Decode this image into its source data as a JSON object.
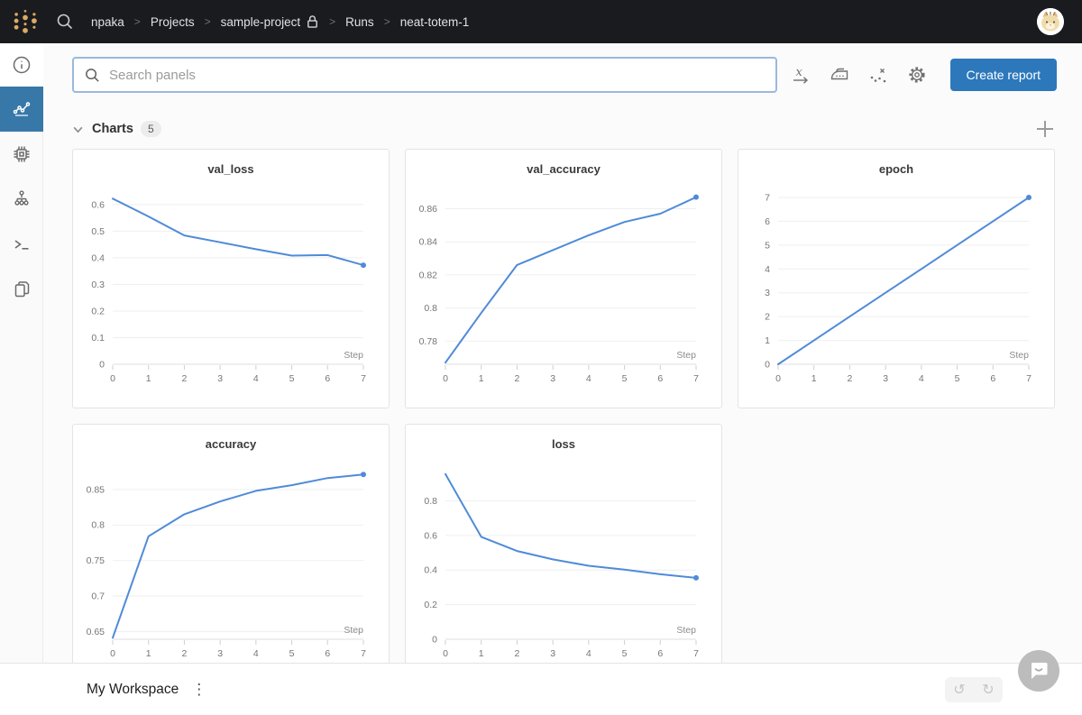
{
  "topbar": {
    "breadcrumb": {
      "user": "npaka",
      "projects": "Projects",
      "project": "sample-project",
      "runs": "Runs",
      "run": "neat-totem-1",
      "separator": ">"
    }
  },
  "toolbar": {
    "search_placeholder": "Search panels",
    "create_report_label": "Create report",
    "icons": [
      "x-axis",
      "smoothing-iron",
      "outliers",
      "settings"
    ]
  },
  "section": {
    "label": "Charts",
    "count": "5"
  },
  "sidebar": {
    "items": [
      "overview",
      "charts",
      "system",
      "model",
      "logs",
      "files"
    ],
    "active": "charts"
  },
  "bottombar": {
    "workspace_label": "My Workspace",
    "undo_icon": "↺",
    "redo_icon": "↻"
  },
  "colors": {
    "accent_blue": "#2d78bb",
    "active_tab_blue": "#3878a8",
    "line_blue": "#4f8bd8",
    "logo_gold": "#d9ac63",
    "topbar_bg": "#1a1b1e"
  },
  "chart_data": [
    {
      "type": "line",
      "title": "val_loss",
      "xlabel": "Step",
      "x": [
        0,
        1,
        2,
        3,
        4,
        5,
        6,
        7
      ],
      "values": [
        0.622,
        0.555,
        0.484,
        0.458,
        0.432,
        0.408,
        0.41,
        0.372
      ],
      "xticks": [
        0,
        1,
        2,
        3,
        4,
        5,
        6,
        7
      ],
      "yticks": [
        0,
        0.1,
        0.2,
        0.3,
        0.4,
        0.5,
        0.6
      ],
      "xlim": [
        0,
        7
      ],
      "ylim": [
        0,
        0.64
      ],
      "grid": true,
      "color": "#4f8bd8"
    },
    {
      "type": "line",
      "title": "val_accuracy",
      "xlabel": "Step",
      "x": [
        0,
        1,
        2,
        3,
        4,
        5,
        6,
        7
      ],
      "values": [
        0.767,
        0.797,
        0.826,
        0.835,
        0.844,
        0.852,
        0.857,
        0.867
      ],
      "xticks": [
        0,
        1,
        2,
        3,
        4,
        5,
        6,
        7
      ],
      "yticks": [
        0.78,
        0.8,
        0.82,
        0.84,
        0.86
      ],
      "xlim": [
        0,
        7
      ],
      "ylim": [
        0.766,
        0.869
      ],
      "grid": true,
      "color": "#4f8bd8"
    },
    {
      "type": "line",
      "title": "epoch",
      "xlabel": "Step",
      "x": [
        0,
        1,
        2,
        3,
        4,
        5,
        6,
        7
      ],
      "values": [
        0,
        1,
        2,
        3,
        4,
        5,
        6,
        7
      ],
      "xticks": [
        0,
        1,
        2,
        3,
        4,
        5,
        6,
        7
      ],
      "yticks": [
        0,
        1,
        2,
        3,
        4,
        5,
        6,
        7
      ],
      "xlim": [
        0,
        7
      ],
      "ylim": [
        0,
        7.15
      ],
      "grid": true,
      "color": "#4f8bd8"
    },
    {
      "type": "line",
      "title": "accuracy",
      "xlabel": "Step",
      "x": [
        0,
        1,
        2,
        3,
        4,
        5,
        6,
        7
      ],
      "values": [
        0.641,
        0.784,
        0.815,
        0.833,
        0.848,
        0.856,
        0.866,
        0.871
      ],
      "xticks": [
        0,
        1,
        2,
        3,
        4,
        5,
        6,
        7
      ],
      "yticks": [
        0.65,
        0.7,
        0.75,
        0.8,
        0.85
      ],
      "xlim": [
        0,
        7
      ],
      "ylim": [
        0.639,
        0.879
      ],
      "grid": true,
      "color": "#4f8bd8"
    },
    {
      "type": "line",
      "title": "loss",
      "xlabel": "Step",
      "x": [
        0,
        1,
        2,
        3,
        4,
        5,
        6,
        7
      ],
      "values": [
        0.955,
        0.592,
        0.51,
        0.462,
        0.425,
        0.403,
        0.376,
        0.355
      ],
      "xticks": [
        0,
        1,
        2,
        3,
        4,
        5,
        6,
        7
      ],
      "yticks": [
        0,
        0.2,
        0.4,
        0.6,
        0.8
      ],
      "xlim": [
        0,
        7
      ],
      "ylim": [
        0,
        0.985
      ],
      "grid": true,
      "color": "#4f8bd8"
    }
  ]
}
